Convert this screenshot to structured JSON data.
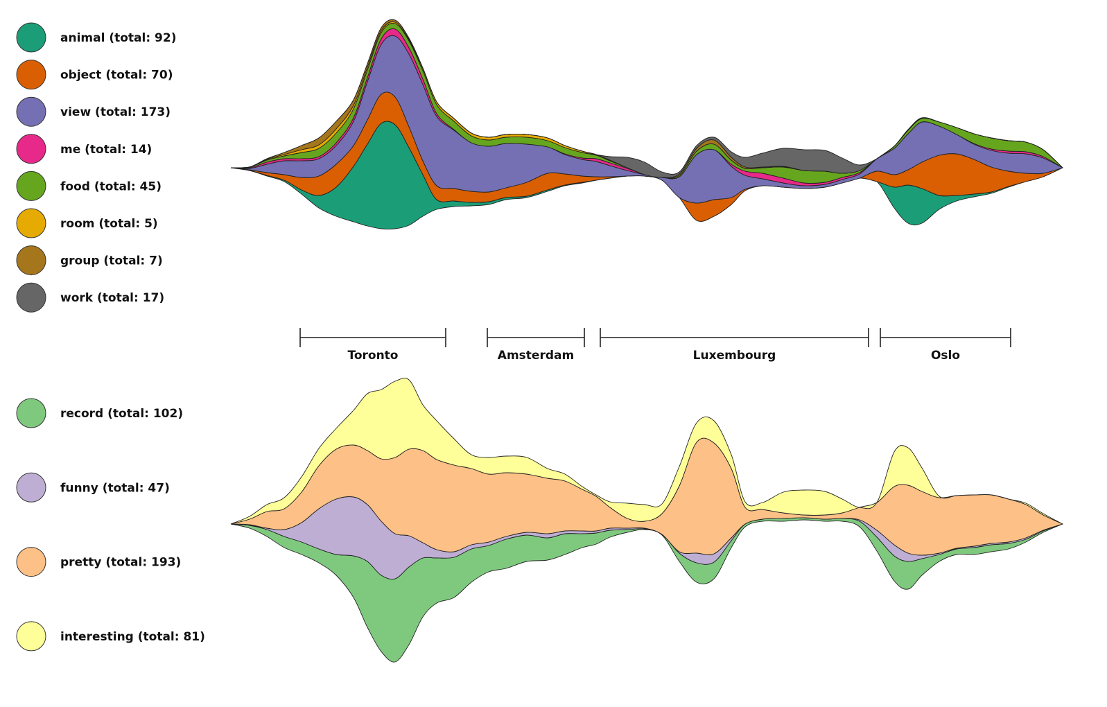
{
  "chart_data": [
    {
      "type": "area",
      "subtype": "streamgraph",
      "title": "",
      "legend_position": "left",
      "series": [
        {
          "name": "animal",
          "label": "animal (total: 92)",
          "total": 92,
          "color": "#1b9e77"
        },
        {
          "name": "object",
          "label": "object (total: 70)",
          "total": 70,
          "color": "#d95f02"
        },
        {
          "name": "view",
          "label": "view (total: 173)",
          "total": 173,
          "color": "#7570b3"
        },
        {
          "name": "me",
          "label": "me (total: 14)",
          "total": 14,
          "color": "#e7298a"
        },
        {
          "name": "food",
          "label": "food (total: 45)",
          "total": 45,
          "color": "#66a61e"
        },
        {
          "name": "room",
          "label": "room (total: 5)",
          "total": 5,
          "color": "#e6ab02"
        },
        {
          "name": "group",
          "label": "group (total: 7)",
          "total": 7,
          "color": "#a6761d"
        },
        {
          "name": "work",
          "label": "work (total: 17)",
          "total": 17,
          "color": "#666666"
        }
      ]
    },
    {
      "type": "area",
      "subtype": "streamgraph",
      "title": "",
      "legend_position": "left",
      "series": [
        {
          "name": "record",
          "label": "record (total: 102)",
          "total": 102,
          "color": "#7fc97f"
        },
        {
          "name": "funny",
          "label": "funny (total: 47)",
          "total": 47,
          "color": "#beaed4"
        },
        {
          "name": "pretty",
          "label": "pretty (total: 193)",
          "total": 193,
          "color": "#fdc086"
        },
        {
          "name": "interesting",
          "label": "interesting (total: 81)",
          "total": 81,
          "color": "#ffff99"
        }
      ]
    }
  ],
  "segments": [
    {
      "name": "Toronto"
    },
    {
      "name": "Amsterdam"
    },
    {
      "name": "Luxembourg"
    },
    {
      "name": "Oslo"
    }
  ]
}
